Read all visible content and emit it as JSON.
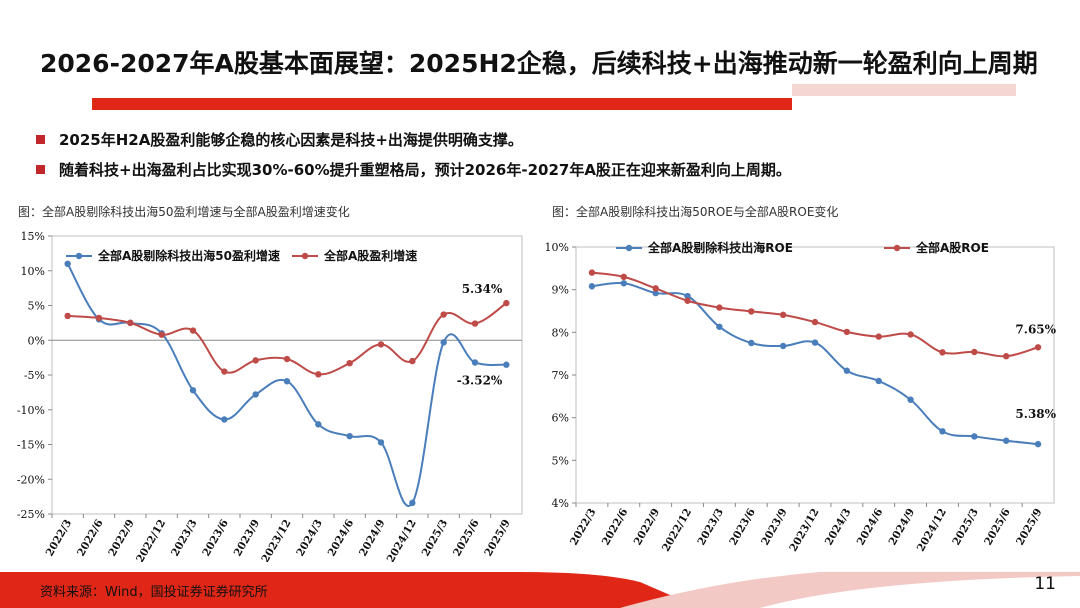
{
  "header": {
    "title": "2026-2027年A股基本面展望：2025H2企稳，后续科技+出海推动新一轮盈利向上周期"
  },
  "bullets": [
    "2025年H2A股盈利能够企稳的核心因素是科技+出海提供明确支撑。",
    "随着科技+出海盈利占比实现30%-60%提升重塑格局，预计2026年-2027年A股正在迎来新盈利向上周期。"
  ],
  "colors": {
    "blue": "#4a7ebb",
    "red": "#be4b48",
    "accent": "#e02717"
  },
  "chart_data": [
    {
      "type": "line",
      "caption": "图：全部A股剔除科技出海50盈利增速与全部A股盈利增速变化",
      "categories": [
        "2022/3",
        "2022/6",
        "2022/9",
        "2022/12",
        "2023/3",
        "2023/6",
        "2023/9",
        "2023/12",
        "2024/3",
        "2024/6",
        "2024/9",
        "2024/12",
        "2025/3",
        "2025/6",
        "2025/9"
      ],
      "ylim": [
        -25,
        15
      ],
      "yticks": [
        15,
        10,
        5,
        0,
        -5,
        -10,
        -15,
        -20,
        -25
      ],
      "ytick_labels": [
        "15%",
        "10%",
        "5%",
        "0%",
        "-5%",
        "-10%",
        "-15%",
        "-20%",
        "-25%"
      ],
      "legend_position": "top",
      "series": [
        {
          "name": "全部A股剔除科技出海50盈利增速",
          "color": "#4a7ebb",
          "values": [
            11.0,
            3.0,
            2.5,
            1.0,
            -7.2,
            -11.4,
            -7.8,
            -5.9,
            -12.1,
            -13.8,
            -14.7,
            -23.4,
            -0.3,
            -3.2,
            -3.52
          ]
        },
        {
          "name": "全部A股盈利增速",
          "color": "#be4b48",
          "values": [
            3.5,
            3.2,
            2.5,
            0.8,
            1.4,
            -4.5,
            -2.9,
            -2.7,
            -4.9,
            -3.3,
            -0.6,
            -3.0,
            3.7,
            2.4,
            5.34
          ]
        }
      ],
      "annotations": [
        {
          "text": "5.34%",
          "series": 1,
          "index": 14
        },
        {
          "text": "-3.52%",
          "series": 0,
          "index": 14
        }
      ]
    },
    {
      "type": "line",
      "caption": "图：全部A股剔除科技出海50ROE与全部A股ROE变化",
      "categories": [
        "2022/3",
        "2022/6",
        "2022/9",
        "2022/12",
        "2023/3",
        "2023/6",
        "2023/9",
        "2023/12",
        "2024/3",
        "2024/6",
        "2024/9",
        "2024/12",
        "2025/3",
        "2025/6",
        "2025/9"
      ],
      "ylim": [
        4,
        10
      ],
      "yticks": [
        10,
        9,
        8,
        7,
        6,
        5,
        4
      ],
      "ytick_labels": [
        "10%",
        "9%",
        "8%",
        "7%",
        "6%",
        "5%",
        "4%"
      ],
      "legend_position": "top",
      "series": [
        {
          "name": "全部A股剔除科技出海ROE",
          "color": "#4a7ebb",
          "values": [
            9.08,
            9.15,
            8.92,
            8.85,
            8.13,
            7.75,
            7.68,
            7.76,
            7.1,
            6.86,
            6.42,
            5.68,
            5.56,
            5.46,
            5.38
          ]
        },
        {
          "name": "全部A股ROE",
          "color": "#be4b48",
          "values": [
            9.4,
            9.3,
            9.03,
            8.74,
            8.58,
            8.49,
            8.41,
            8.24,
            8.01,
            7.9,
            7.95,
            7.53,
            7.54,
            7.44,
            7.65
          ]
        }
      ],
      "annotations": [
        {
          "text": "7.65%",
          "series": 1,
          "index": 14
        },
        {
          "text": "5.38%",
          "series": 0,
          "index": 14
        }
      ]
    }
  ],
  "footer": {
    "source": "资料来源：Wind，国投证券证券研究所",
    "page_number": "11"
  }
}
